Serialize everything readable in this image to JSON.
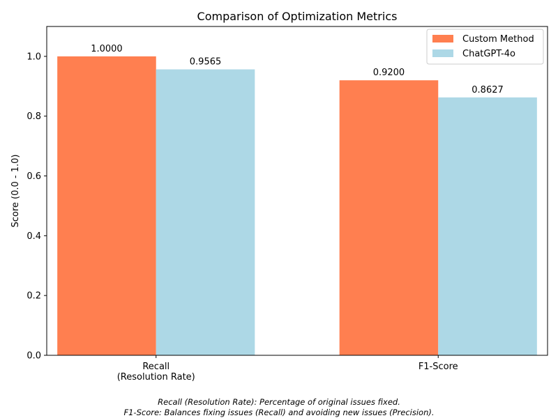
{
  "chart_data": {
    "type": "bar",
    "title": "Comparison of Optimization Metrics",
    "xlabel": "",
    "ylabel": "Score (0.0 - 1.0)",
    "ylim": [
      0,
      1.1
    ],
    "yticks": [
      0.0,
      0.2,
      0.4,
      0.6,
      0.8,
      1.0
    ],
    "ytick_labels": [
      "0.0",
      "0.2",
      "0.4",
      "0.6",
      "0.8",
      "1.0"
    ],
    "categories": [
      [
        "Recall",
        "(Resolution Rate)"
      ],
      [
        "F1-Score"
      ]
    ],
    "series": [
      {
        "name": "Custom Method",
        "color": "#FF7F50",
        "values": [
          1.0,
          0.92
        ],
        "value_labels": [
          "1.0000",
          "0.9200"
        ]
      },
      {
        "name": "ChatGPT-4o",
        "color": "#ADD8E6",
        "values": [
          0.9565,
          0.8627
        ],
        "value_labels": [
          "0.9565",
          "0.8627"
        ]
      }
    ],
    "legend_position": "top-right",
    "grid": false,
    "footnotes": [
      "Recall (Resolution Rate): Percentage of original issues fixed.",
      "F1-Score: Balances fixing issues (Recall) and avoiding new issues (Precision)."
    ]
  }
}
